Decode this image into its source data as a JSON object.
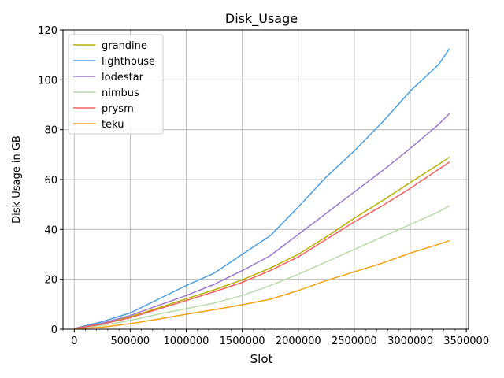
{
  "chart_data": {
    "type": "line",
    "title": "Disk_Usage",
    "xlabel": "Slot",
    "ylabel": "Disk Usage in GB",
    "xlim": [
      -100000,
      3520000
    ],
    "ylim": [
      0,
      120
    ],
    "xticks": [
      0,
      500000,
      1000000,
      1500000,
      2000000,
      2500000,
      3000000,
      3500000
    ],
    "xtick_labels": [
      "0",
      "500000",
      "1000000",
      "1500000",
      "2000000",
      "2500000",
      "3000000",
      "3500000"
    ],
    "yticks": [
      0,
      20,
      40,
      60,
      80,
      100,
      120
    ],
    "ytick_labels": [
      "0",
      "20",
      "40",
      "60",
      "80",
      "100",
      "120"
    ],
    "grid": true,
    "legend_position": "top-left",
    "x": [
      0,
      250000,
      500000,
      750000,
      1000000,
      1250000,
      1500000,
      1750000,
      2000000,
      2250000,
      2500000,
      2750000,
      3000000,
      3250000,
      3350000
    ],
    "series": [
      {
        "name": "grandine",
        "color": "#b5b000",
        "values": [
          0.3,
          2.2,
          5.0,
          8.5,
          12.2,
          15.8,
          19.8,
          24.5,
          30.0,
          37.0,
          44.5,
          51.5,
          58.8,
          66.0,
          69.0
        ]
      },
      {
        "name": "lighthouse",
        "color": "#4c9fe0",
        "values": [
          0.3,
          3.0,
          6.5,
          12.0,
          17.5,
          22.5,
          30.0,
          37.5,
          49.0,
          61.0,
          71.5,
          83.0,
          95.5,
          106.0,
          112.5
        ]
      },
      {
        "name": "lodestar",
        "color": "#9d76d0",
        "values": [
          0.3,
          2.4,
          5.5,
          9.5,
          13.5,
          18.0,
          23.5,
          29.5,
          38.0,
          46.5,
          55.0,
          63.5,
          72.5,
          82.0,
          86.5
        ]
      },
      {
        "name": "nimbus",
        "color": "#b5dba9",
        "values": [
          0.2,
          1.5,
          3.5,
          6.0,
          8.2,
          10.5,
          13.5,
          17.5,
          22.0,
          27.0,
          32.0,
          37.0,
          42.0,
          47.0,
          49.5
        ]
      },
      {
        "name": "prysm",
        "color": "#f0625f",
        "values": [
          0.3,
          2.0,
          4.6,
          8.0,
          11.5,
          15.0,
          18.8,
          23.5,
          29.0,
          36.0,
          43.0,
          49.5,
          56.5,
          64.0,
          67.0
        ]
      },
      {
        "name": "teku",
        "color": "#f5a10f",
        "values": [
          0.1,
          0.8,
          2.2,
          4.0,
          6.0,
          7.8,
          9.8,
          12.0,
          15.5,
          19.5,
          23.0,
          26.5,
          30.5,
          34.0,
          35.5
        ]
      }
    ]
  }
}
